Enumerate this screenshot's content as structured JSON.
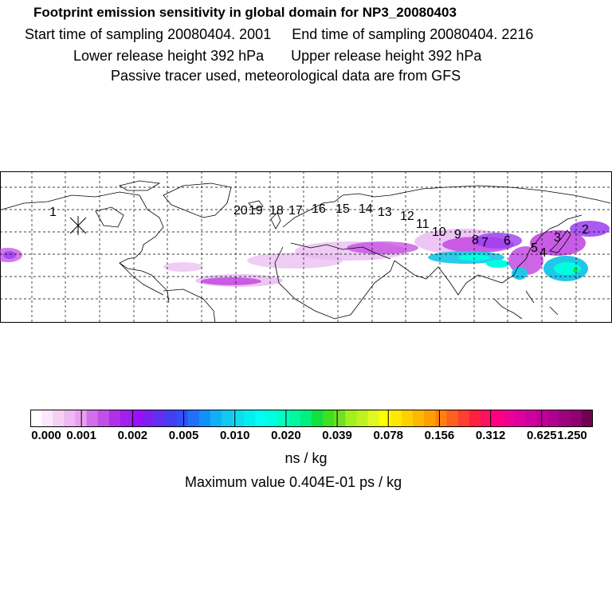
{
  "title": {
    "line1": "Footprint emission sensitivity in global domain for NP3_20080403",
    "start_label": "Start time of sampling 20080404.  2001",
    "end_label": "End time of sampling 20080404.  2216",
    "lower_label": "Lower release height  392 hPa",
    "upper_label": "Upper release height  392 hPa",
    "line4": "Passive tracer used, meteorological data are from GFS"
  },
  "map": {
    "trajectory_labels": [
      "1",
      "20",
      "19",
      "18",
      "17",
      "16",
      "15",
      "14",
      "13",
      "12",
      "11",
      "10",
      "9",
      "8",
      "7",
      "6",
      "5",
      "4",
      "3",
      "2"
    ],
    "colors": {
      "light_purple": "#e8b8f0",
      "magenta": "#c040e0",
      "violet": "#9b3df0",
      "cyan": "#20c8e8",
      "aqua": "#00ffe0",
      "green": "#20e040"
    }
  },
  "colorbar": {
    "tick_labels": [
      "0.000",
      "0.001",
      "0.002",
      "0.005",
      "0.010",
      "0.020",
      "0.039",
      "0.078",
      "0.156",
      "0.312",
      "0.625",
      "1.250"
    ],
    "colors": [
      "#ffffff",
      "#fbe8fb",
      "#f5d0f5",
      "#eeb8f0",
      "#e8a0ee",
      "#d070e8",
      "#c050e8",
      "#b030e8",
      "#a020f0",
      "#9a10f8",
      "#7a20f0",
      "#6030f0",
      "#4040f0",
      "#3050f8",
      "#2070f8",
      "#1090f8",
      "#10b0f8",
      "#10c8f0",
      "#10dcf0",
      "#00f0f0",
      "#00fff0",
      "#00ffe0",
      "#00ffc0",
      "#00f8a0",
      "#00f080",
      "#10e040",
      "#40e020",
      "#70e020",
      "#a0f020",
      "#c0f020",
      "#e0f820",
      "#ffff00",
      "#ffe800",
      "#ffd000",
      "#ffb800",
      "#ffa000",
      "#ff8010",
      "#ff6020",
      "#ff4030",
      "#ff2040",
      "#ff1060",
      "#ff0080",
      "#f00090",
      "#e000a0",
      "#d000a0",
      "#c00098",
      "#b00090",
      "#a00080",
      "#900070",
      "#700050"
    ],
    "unit": "ns / kg",
    "max_value": "Maximum value  0.404E-01 ps / kg"
  }
}
